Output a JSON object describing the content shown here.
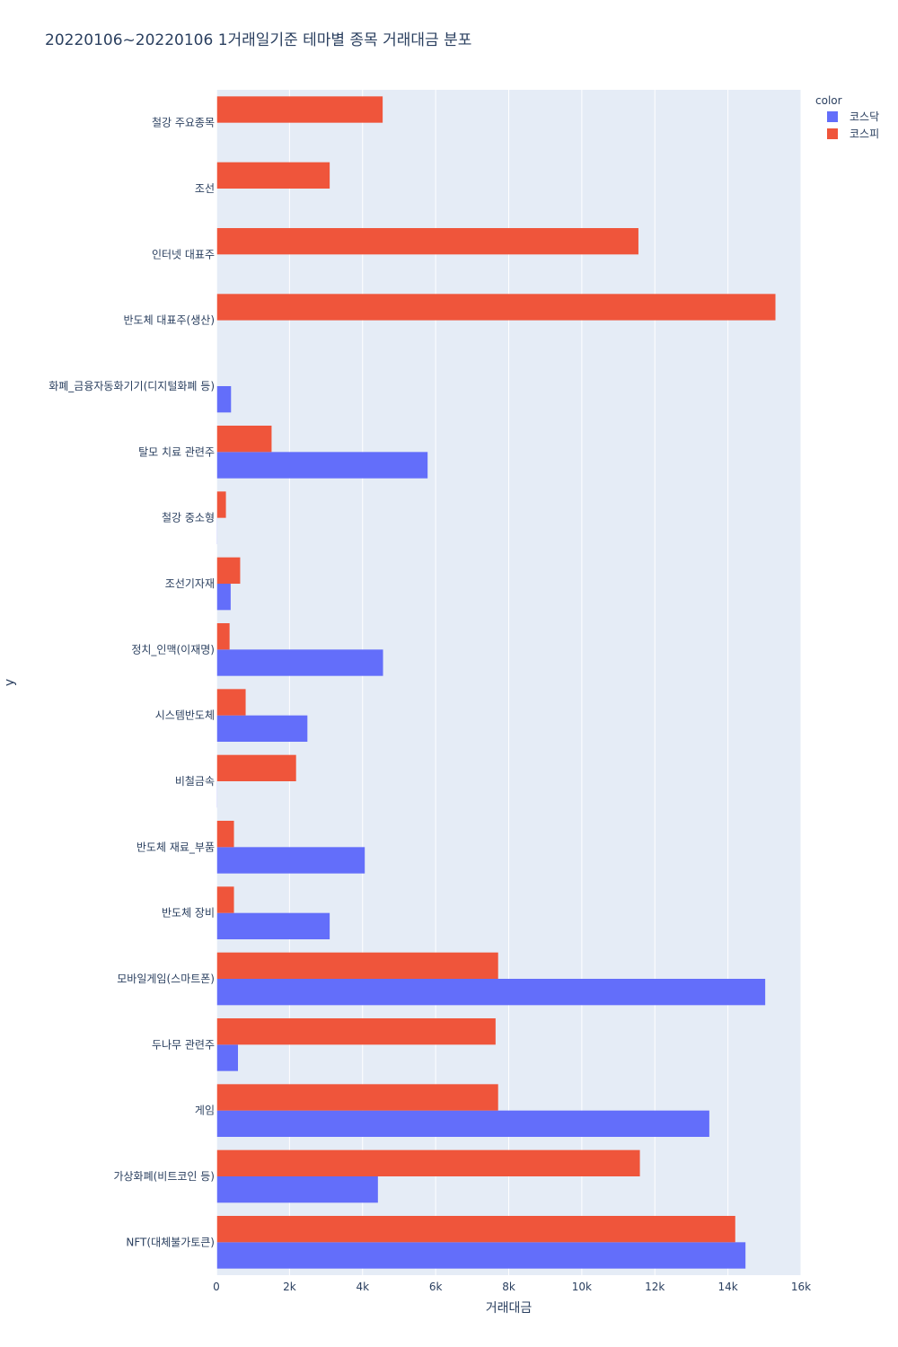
{
  "chart_data": {
    "type": "bar",
    "orientation": "horizontal",
    "title": "20220106~20220106 1거래일기준 테마별 종목 거래대금 분포",
    "xlabel": "거래대금",
    "ylabel": "y",
    "xlim": [
      0,
      16000
    ],
    "x_ticks": [
      0,
      2000,
      4000,
      6000,
      8000,
      10000,
      12000,
      14000,
      16000
    ],
    "x_tick_labels": [
      "0",
      "2k",
      "4k",
      "6k",
      "8k",
      "10k",
      "12k",
      "14k",
      "16k"
    ],
    "grid": true,
    "legend": {
      "title": "color",
      "position": "top-right"
    },
    "categories": [
      "철강 주요종목",
      "조선",
      "인터넷 대표주",
      "반도체 대표주(생산)",
      "화폐_금융자동화기기(디지털화폐 등)",
      "탈모 치료 관련주",
      "철강 중소형",
      "조선기자재",
      "정치_인맥(이재명)",
      "시스템반도체",
      "비철금속",
      "반도체 재료_부품",
      "반도체 장비",
      "모바일게임(스마트폰)",
      "두나무 관련주",
      "게임",
      "가상화폐(비트코인 등)",
      "NFT(대체불가토큰)"
    ],
    "series": [
      {
        "name": "코스닥",
        "color": "#636efa",
        "values": [
          0,
          0,
          0,
          0,
          400,
          5780,
          20,
          390,
          4560,
          2490,
          20,
          4060,
          3100,
          15020,
          590,
          13490,
          4420,
          14480
        ]
      },
      {
        "name": "코스피",
        "color": "#ef553b",
        "values": [
          4550,
          3100,
          11550,
          15300,
          0,
          1510,
          260,
          650,
          360,
          800,
          2180,
          480,
          480,
          7710,
          7640,
          7710,
          11590,
          14200
        ]
      }
    ]
  }
}
